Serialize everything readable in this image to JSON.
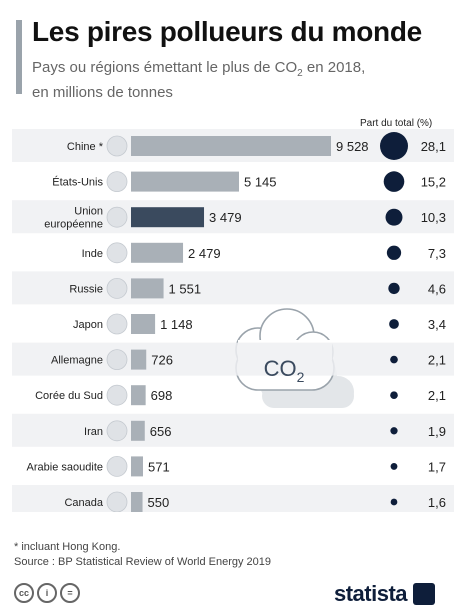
{
  "header": {
    "title": "Les pires pollueurs du monde",
    "subtitle_part1": "Pays ou régions émettant le plus de CO",
    "subtitle_sub": "2",
    "subtitle_part2": " en 2018,",
    "subtitle_line2": "en millions de tonnes"
  },
  "share_header": "Part du total (%)",
  "chart_data": {
    "type": "bar",
    "orientation": "horizontal",
    "title": "Les pires pollueurs du monde",
    "unit": "millions de tonnes",
    "categories": [
      "Chine *",
      "États-Unis",
      "Union européenne",
      "Inde",
      "Russie",
      "Japon",
      "Allemagne",
      "Corée du Sud",
      "Iran",
      "Arabie saoudite",
      "Canada"
    ],
    "category_lines": [
      [
        "Chine *"
      ],
      [
        "États-Unis"
      ],
      [
        "Union",
        "européenne"
      ],
      [
        "Inde"
      ],
      [
        "Russie"
      ],
      [
        "Japon"
      ],
      [
        "Allemagne"
      ],
      [
        "Corée du Sud"
      ],
      [
        "Iran"
      ],
      [
        "Arabie saoudite"
      ],
      [
        "Canada"
      ]
    ],
    "values": [
      9528,
      5145,
      3479,
      2479,
      1551,
      1148,
      726,
      698,
      656,
      571,
      550
    ],
    "value_labels": [
      "9 528",
      "5 145",
      "3 479",
      "2 479",
      "1 551",
      "1 148",
      "726",
      "698",
      "656",
      "571",
      "550"
    ],
    "share_pct": [
      28.1,
      15.2,
      10.3,
      7.3,
      4.6,
      3.4,
      2.1,
      2.1,
      1.9,
      1.7,
      1.6
    ],
    "share_labels": [
      "28,1",
      "15,2",
      "10,3",
      "7,3",
      "4,6",
      "3,4",
      "2,1",
      "2,1",
      "1,9",
      "1,7",
      "1,6"
    ],
    "flag_icons": [
      "china-flag-icon",
      "usa-flag-icon",
      "eu-flag-icon",
      "india-flag-icon",
      "russia-flag-icon",
      "japan-flag-icon",
      "germany-flag-icon",
      "south-korea-flag-icon",
      "iran-flag-icon",
      "saudi-arabia-flag-icon",
      "canada-flag-icon"
    ],
    "colors": {
      "bar": "#a9b0b7",
      "bar_highlight": "#3a4a5e",
      "bubble": "#0e1e3a",
      "row_band": "#eef0f2"
    },
    "highlight_category": "Union européenne",
    "decoration_text": "CO2"
  },
  "footnote": {
    "line1": "* incluant Hong Kong.",
    "line2": "Source : BP Statistical Review of World Energy 2019"
  },
  "brand": "statista"
}
